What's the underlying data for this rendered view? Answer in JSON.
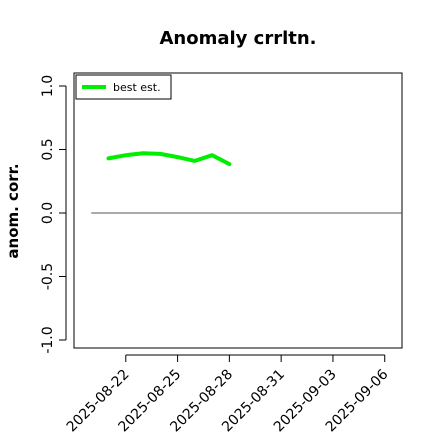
{
  "chart_data": {
    "type": "line",
    "title": "Anomaly crrltn.",
    "xlabel": "",
    "ylabel": "anom. corr.",
    "ylim": [
      -1.0,
      1.0
    ],
    "yticks": [
      -1.0,
      -0.5,
      0.0,
      0.5,
      1.0
    ],
    "ytick_labels": [
      "-1.0",
      "-0.5",
      "0.0",
      "0.5",
      "1.0"
    ],
    "xlim": [
      "2025-08-19",
      "2025-09-07"
    ],
    "xticks": [
      "2025-08-22",
      "2025-08-25",
      "2025-08-28",
      "2025-08-31",
      "2025-09-03",
      "2025-09-06"
    ],
    "grid": false,
    "legend_position": "top-left",
    "reference_line": {
      "y": 0.0,
      "x_start": "2025-08-20",
      "x_end": "2025-09-07",
      "color": "#555555"
    },
    "series": [
      {
        "name": "best est.",
        "color": "#00ee00",
        "x": [
          "2025-08-21",
          "2025-08-22",
          "2025-08-23",
          "2025-08-24",
          "2025-08-25",
          "2025-08-26",
          "2025-08-27",
          "2025-08-28"
        ],
        "values": [
          0.43,
          0.455,
          0.47,
          0.465,
          0.44,
          0.41,
          0.455,
          0.385
        ]
      }
    ]
  }
}
